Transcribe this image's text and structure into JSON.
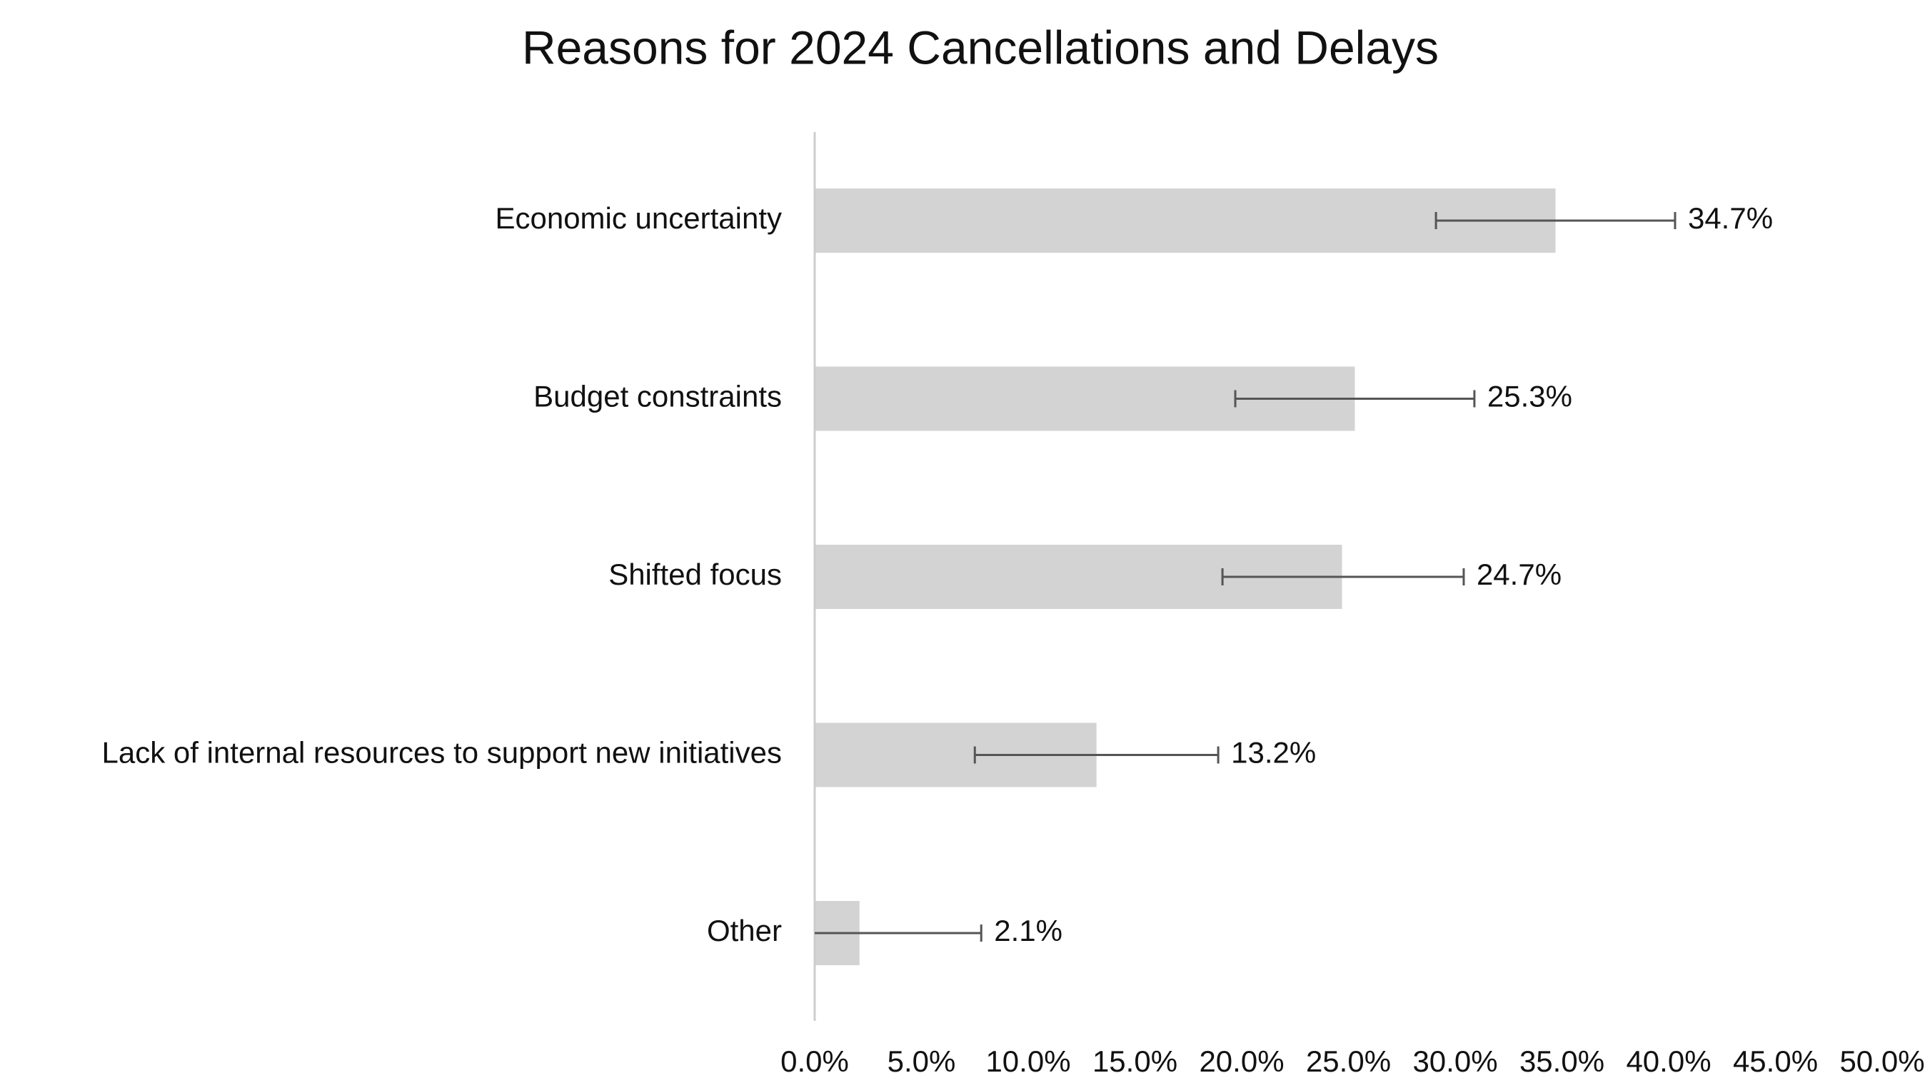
{
  "chart_data": {
    "type": "bar",
    "orientation": "horizontal",
    "title": "Reasons for 2024 Cancellations and Delays",
    "xlabel": "",
    "ylabel": "",
    "categories": [
      "Economic uncertainty",
      "Budget constraints",
      "Shifted focus",
      "Lack of internal resources to support new initiatives",
      "Other"
    ],
    "values": [
      34.7,
      25.3,
      24.7,
      13.2,
      2.1
    ],
    "data_labels": [
      "34.7%",
      "25.3%",
      "24.7%",
      "13.2%",
      "2.1%"
    ],
    "error_bars": [
      {
        "low": 29.1,
        "high": 40.3
      },
      {
        "low": 19.7,
        "high": 30.9
      },
      {
        "low": 19.1,
        "high": 30.4
      },
      {
        "low": 7.5,
        "high": 18.9
      },
      {
        "low": 0.0,
        "high": 7.8
      }
    ],
    "xlim": [
      0,
      50
    ],
    "x_ticks": [
      0,
      5,
      10,
      15,
      20,
      25,
      30,
      35,
      40,
      45,
      50
    ],
    "x_tick_labels": [
      "0.0%",
      "5.0%",
      "10.0%",
      "15.0%",
      "20.0%",
      "25.0%",
      "30.0%",
      "35.0%",
      "40.0%",
      "45.0%",
      "50.0%"
    ],
    "grid": false,
    "legend": "none",
    "colors": {
      "bar": "#d3d3d3",
      "error_bar": "#555555",
      "axis": "#cccccc",
      "text": "#111111"
    }
  }
}
